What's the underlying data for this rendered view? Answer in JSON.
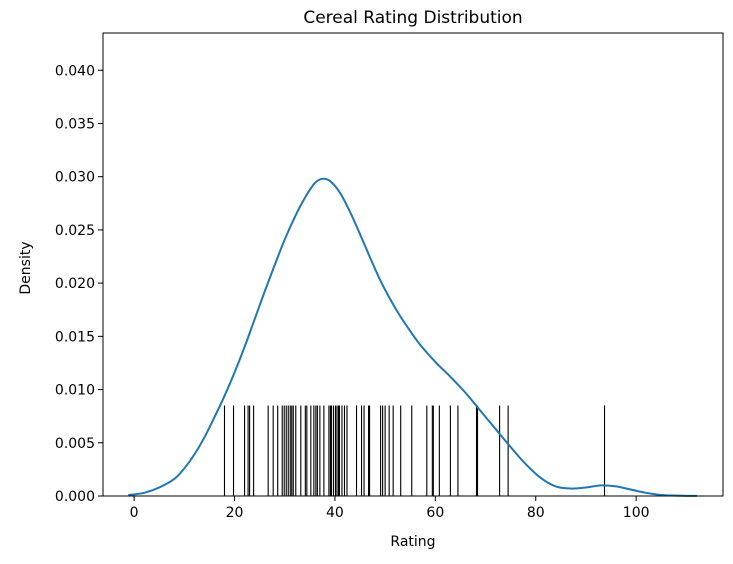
{
  "chart_data": {
    "type": "kde_rug",
    "title": "Cereal Rating Distribution",
    "xlabel": "Rating",
    "ylabel": "Density",
    "xlim": [
      -6.2,
      117.3
    ],
    "ylim": [
      0,
      0.0435
    ],
    "xticks": [
      0,
      20,
      40,
      60,
      80,
      100
    ],
    "yticks": [
      0.0,
      0.005,
      0.01,
      0.015,
      0.02,
      0.025,
      0.03,
      0.035,
      0.04
    ],
    "ytick_labels": [
      "0.000",
      "0.005",
      "0.010",
      "0.015",
      "0.020",
      "0.025",
      "0.030",
      "0.035",
      "0.040"
    ],
    "grid": false,
    "kde_color": "#1f77b4",
    "rug_color": "#000000",
    "rug_height": 0.0085,
    "kde_curve": {
      "x": [
        -1,
        2,
        5,
        8,
        10,
        12,
        14,
        16,
        18,
        20,
        22,
        24,
        26,
        28,
        30,
        32,
        34,
        36,
        37.5,
        39,
        41,
        43,
        45,
        47,
        49,
        51,
        53,
        55,
        57,
        60,
        63,
        66,
        69,
        72,
        75,
        78,
        81,
        84,
        87,
        90,
        93,
        96,
        99,
        102,
        105,
        108,
        112
      ],
      "y": [
        0.0001,
        0.0003,
        0.0008,
        0.0016,
        0.0026,
        0.0039,
        0.0055,
        0.0074,
        0.0094,
        0.0116,
        0.014,
        0.0166,
        0.0192,
        0.0217,
        0.0241,
        0.0262,
        0.028,
        0.0294,
        0.0298,
        0.0296,
        0.0285,
        0.0267,
        0.0246,
        0.0224,
        0.0203,
        0.0185,
        0.0169,
        0.0155,
        0.0142,
        0.0126,
        0.0112,
        0.0097,
        0.008,
        0.0063,
        0.0046,
        0.003,
        0.0017,
        0.0009,
        0.0007,
        0.0008,
        0.001,
        0.0009,
        0.0006,
        0.0003,
        0.0001,
        4e-05,
        1e-05
      ],
      "name": ""
    },
    "rug_values": [
      18.0,
      19.8,
      22.0,
      22.7,
      23.0,
      23.8,
      26.7,
      27.7,
      28.6,
      29.5,
      29.9,
      30.3,
      30.7,
      31.1,
      31.4,
      31.7,
      32.2,
      33.2,
      34.1,
      34.4,
      35.2,
      35.8,
      36.2,
      36.5,
      37.0,
      37.8,
      38.8,
      39.1,
      39.3,
      39.7,
      40.1,
      40.4,
      40.7,
      40.9,
      41.4,
      41.9,
      42.4,
      44.3,
      45.3,
      45.8,
      46.7,
      46.9,
      49.1,
      49.5,
      50.0,
      50.8,
      51.6,
      53.1,
      55.3,
      58.3,
      59.4,
      59.6,
      60.8,
      63.0,
      64.5,
      68.2,
      68.4,
      72.8,
      74.5,
      93.7
    ]
  }
}
